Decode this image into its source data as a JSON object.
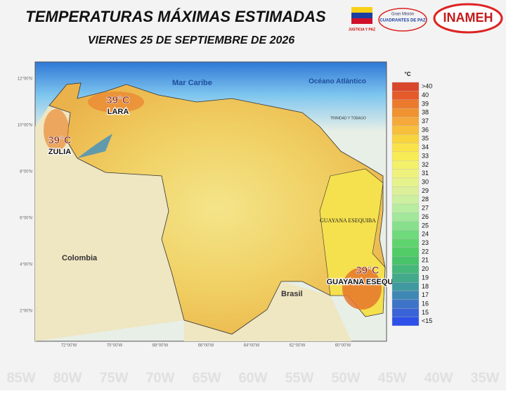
{
  "header": {
    "title": "TEMPERATURAS MÁXIMAS ESTIMADAS",
    "subtitle": "VIERNES 25 DE SEPTIEMBRE DE 2026"
  },
  "logos": {
    "ministry": "JUSTICIA Y PAZ",
    "mission_top": "Gran Misión",
    "mission": "CUADRANTES DE PAZ",
    "institute": "INAMEH"
  },
  "map": {
    "labels": {
      "sea": "Mar Caribe",
      "ocean": "Océano Atlántico",
      "colombia": "Colombia",
      "brasil": "Brasil",
      "guayana": "GUAYANA ESEQUIBA",
      "trinidad": "TRINIDAD Y TOBAGO"
    },
    "hotspots": [
      {
        "value": "39°C",
        "place": "LARA"
      },
      {
        "value": "39°C",
        "place": "ZULIA"
      },
      {
        "value": "39°C",
        "place": "GUAYANA ESEQUIBA."
      }
    ],
    "lat_labels": [
      "12°00'N",
      "10°00'N",
      "8°00'N",
      "6°00'N",
      "4°00'N",
      "2°00'N"
    ],
    "lon_labels": [
      "72°00'W",
      "70°00'W",
      "68°00'W",
      "66°00'W",
      "64°00'W",
      "62°00'W",
      "60°00'W"
    ]
  },
  "legend": {
    "unit": "°C",
    "items": [
      {
        "label": ">40",
        "color": "#d9472b"
      },
      {
        "label": "40",
        "color": "#e55a2b"
      },
      {
        "label": "39",
        "color": "#ec7a2e"
      },
      {
        "label": "38",
        "color": "#f0922f"
      },
      {
        "label": "37",
        "color": "#f5a93a"
      },
      {
        "label": "36",
        "color": "#f7bf3c"
      },
      {
        "label": "35",
        "color": "#f8d43f"
      },
      {
        "label": "34",
        "color": "#fae34a"
      },
      {
        "label": "33",
        "color": "#f7ec55"
      },
      {
        "label": "32",
        "color": "#f3f06a"
      },
      {
        "label": "31",
        "color": "#eef27c"
      },
      {
        "label": "30",
        "color": "#e6f28c"
      },
      {
        "label": "29",
        "color": "#dcf09a"
      },
      {
        "label": "28",
        "color": "#ccefa0"
      },
      {
        "label": "27",
        "color": "#b8eca0"
      },
      {
        "label": "26",
        "color": "#a2e79a"
      },
      {
        "label": "25",
        "color": "#88e08c"
      },
      {
        "label": "24",
        "color": "#6fda7c"
      },
      {
        "label": "23",
        "color": "#5fd46e"
      },
      {
        "label": "22",
        "color": "#52cc66"
      },
      {
        "label": "21",
        "color": "#49c36a"
      },
      {
        "label": "20",
        "color": "#45b77a"
      },
      {
        "label": "19",
        "color": "#43a98b"
      },
      {
        "label": "18",
        "color": "#4199a0"
      },
      {
        "label": "17",
        "color": "#3f87b5"
      },
      {
        "label": "16",
        "color": "#3d74c8"
      },
      {
        "label": "15",
        "color": "#3a63d8"
      },
      {
        "label": "<15",
        "color": "#2e50e8"
      }
    ]
  },
  "background_labels": [
    "85W",
    "80W",
    "75W",
    "70W",
    "65W",
    "60W",
    "55W",
    "50W",
    "45W",
    "40W",
    "35W"
  ]
}
